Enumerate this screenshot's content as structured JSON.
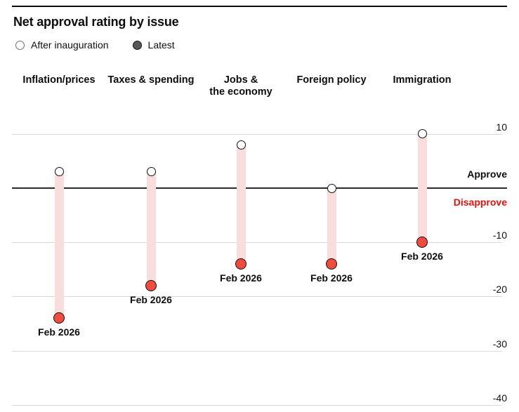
{
  "header": {
    "title": "Net approval rating by issue"
  },
  "legend": [
    {
      "label": "After inauguration",
      "marker": "open-circle"
    },
    {
      "label": "Latest",
      "marker": "filled-circle"
    }
  ],
  "annotations": {
    "approve": "Approve",
    "disapprove": "Disapprove"
  },
  "chart_data": {
    "type": "dumbbell",
    "title": "Net approval rating by issue",
    "categories": [
      "Inflation/prices",
      "Taxes & spending",
      "Jobs &\nthe economy",
      "Foreign policy",
      "Immigration"
    ],
    "series": [
      {
        "name": "After inauguration",
        "values": [
          3,
          3,
          8,
          0,
          10
        ]
      },
      {
        "name": "Latest",
        "values": [
          -24,
          -18,
          -14,
          -14,
          -10
        ],
        "point_label": "Feb 2026"
      }
    ],
    "yticks": [
      10,
      0,
      -10,
      -20,
      -30,
      -40
    ],
    "ytick_labels": [
      "10",
      "",
      "-10",
      "-20",
      "-30",
      "-40"
    ],
    "ylim": [
      -42,
      14
    ],
    "grid": true,
    "legend_position": "top-left",
    "zero_annotations": {
      "above": "Approve",
      "below": "Disapprove"
    },
    "colors": {
      "after_fill": "#ffffff",
      "after_stroke": "#121212",
      "latest_fill": "#ee4c3f",
      "latest_stroke": "#121212",
      "band": "#f9dcdc",
      "gridline": "#d9d9d9",
      "zero_line": "#2b2b2b",
      "approve_text": "#0d0d0d",
      "disapprove_text": "#e3120b",
      "legend_latest_fill": "#575757"
    }
  }
}
